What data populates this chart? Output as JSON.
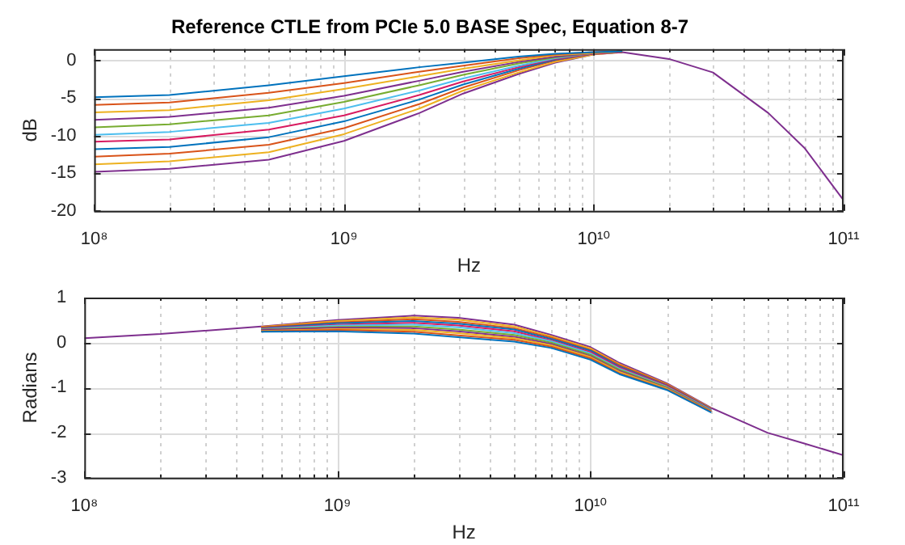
{
  "chart_data": [
    {
      "type": "line",
      "title": "Reference CTLE from PCIe 5.0 BASE Spec, Equation 8-7",
      "xlabel": "Hz",
      "ylabel": "dB",
      "log": "x",
      "grid": true,
      "marker": "none",
      "line_style": "solid",
      "x": [
        100000000.0,
        200000000.0,
        500000000.0,
        1000000000.0,
        2000000000.0,
        3000000000.0,
        5000000000.0,
        7000000000.0,
        10000000000.0,
        13000000000.0,
        20000000000.0,
        30000000000.0,
        50000000000.0,
        70000000000.0,
        100000000000.0
      ],
      "xlim": [
        100000000.0,
        100000000000.0
      ],
      "xticks": [
        {
          "value": 100000000.0,
          "label": "10⁸"
        },
        {
          "value": 200000000.0,
          "label": null
        },
        {
          "value": 300000000.0,
          "label": null
        },
        {
          "value": 400000000.0,
          "label": null
        },
        {
          "value": 500000000.0,
          "label": null
        },
        {
          "value": 600000000.0,
          "label": null
        },
        {
          "value": 700000000.0,
          "label": null
        },
        {
          "value": 800000000.0,
          "label": null
        },
        {
          "value": 900000000.0,
          "label": null
        },
        {
          "value": 1000000000.0,
          "label": "10⁹"
        },
        {
          "value": 2000000000.0,
          "label": null
        },
        {
          "value": 3000000000.0,
          "label": null
        },
        {
          "value": 4000000000.0,
          "label": null
        },
        {
          "value": 5000000000.0,
          "label": null
        },
        {
          "value": 6000000000.0,
          "label": null
        },
        {
          "value": 7000000000.0,
          "label": null
        },
        {
          "value": 8000000000.0,
          "label": null
        },
        {
          "value": 9000000000.0,
          "label": null
        },
        {
          "value": 10000000000.0,
          "label": "10¹⁰"
        },
        {
          "value": 20000000000.0,
          "label": null
        },
        {
          "value": 30000000000.0,
          "label": null
        },
        {
          "value": 40000000000.0,
          "label": null
        },
        {
          "value": 50000000000.0,
          "label": null
        },
        {
          "value": 60000000000.0,
          "label": null
        },
        {
          "value": 70000000000.0,
          "label": null
        },
        {
          "value": 80000000000.0,
          "label": null
        },
        {
          "value": 90000000000.0,
          "label": null
        },
        {
          "value": 100000000000.0,
          "label": "10¹¹"
        }
      ],
      "ylim": [
        -20,
        1.5
      ],
      "yticks": [
        -20,
        -15,
        -10,
        -5,
        0
      ],
      "series": [
        {
          "color": "#0072bd",
          "values": [
            -4.9,
            -4.6,
            -3.3,
            -2.1,
            -0.9,
            -0.3,
            0.5,
            0.9,
            1.1,
            1.2,
            null,
            null,
            null,
            null,
            null
          ]
        },
        {
          "color": "#d95319",
          "values": [
            -5.9,
            -5.6,
            -4.3,
            -3.0,
            -1.5,
            -0.7,
            0.3,
            0.8,
            1.1,
            1.2,
            null,
            null,
            null,
            null,
            null
          ]
        },
        {
          "color": "#edb120",
          "values": [
            -6.9,
            -6.6,
            -5.3,
            -3.8,
            -2.1,
            -1.1,
            0.0,
            0.7,
            1.0,
            1.2,
            null,
            null,
            null,
            null,
            null
          ]
        },
        {
          "color": "#7e2f8e",
          "values": [
            -7.9,
            -7.5,
            -6.3,
            -4.7,
            -2.7,
            -1.5,
            -0.2,
            0.5,
            1.0,
            1.2,
            null,
            null,
            null,
            null,
            null
          ]
        },
        {
          "color": "#77ac30",
          "values": [
            -8.9,
            -8.5,
            -7.3,
            -5.5,
            -3.3,
            -1.9,
            -0.4,
            0.4,
            1.0,
            1.2,
            null,
            null,
            null,
            null,
            null
          ]
        },
        {
          "color": "#4dbeee",
          "values": [
            -9.9,
            -9.5,
            -8.3,
            -6.4,
            -4.0,
            -2.4,
            -0.7,
            0.3,
            1.0,
            1.2,
            null,
            null,
            null,
            null,
            null
          ]
        },
        {
          "color": "#d81b60",
          "values": [
            -10.8,
            -10.5,
            -9.2,
            -7.3,
            -4.6,
            -2.8,
            -0.9,
            0.2,
            0.9,
            1.1,
            null,
            null,
            null,
            null,
            null
          ]
        },
        {
          "color": "#0072bd",
          "values": [
            -11.8,
            -11.5,
            -10.2,
            -8.1,
            -5.2,
            -3.2,
            -1.1,
            0.1,
            0.9,
            1.1,
            null,
            null,
            null,
            null,
            null
          ]
        },
        {
          "color": "#d95319",
          "values": [
            -12.8,
            -12.4,
            -11.2,
            -9.0,
            -5.8,
            -3.6,
            -1.3,
            0.0,
            0.9,
            1.1,
            null,
            null,
            null,
            null,
            null
          ]
        },
        {
          "color": "#edb120",
          "values": [
            -13.8,
            -13.4,
            -12.2,
            -9.8,
            -6.4,
            -4.0,
            -1.6,
            -0.2,
            0.8,
            1.1,
            null,
            null,
            null,
            null,
            null
          ]
        },
        {
          "color": "#7e2f8e",
          "values": [
            -14.8,
            -14.4,
            -13.2,
            -10.7,
            -7.0,
            -4.4,
            -1.8,
            -0.3,
            0.8,
            1.1,
            0.2,
            -1.6,
            -7.0,
            -11.7,
            -18.6
          ]
        }
      ]
    },
    {
      "type": "line",
      "xlabel": "Hz",
      "ylabel": "Radians",
      "log": "x",
      "grid": true,
      "marker": "none",
      "line_style": "solid",
      "x": [
        100000000.0,
        200000000.0,
        500000000.0,
        1000000000.0,
        2000000000.0,
        3000000000.0,
        5000000000.0,
        7000000000.0,
        10000000000.0,
        13000000000.0,
        20000000000.0,
        30000000000.0,
        50000000000.0,
        70000000000.0,
        100000000000.0
      ],
      "xlim": [
        100000000.0,
        100000000000.0
      ],
      "xticks": [
        {
          "value": 100000000.0,
          "label": "10⁸"
        },
        {
          "value": 200000000.0,
          "label": null
        },
        {
          "value": 300000000.0,
          "label": null
        },
        {
          "value": 400000000.0,
          "label": null
        },
        {
          "value": 500000000.0,
          "label": null
        },
        {
          "value": 600000000.0,
          "label": null
        },
        {
          "value": 700000000.0,
          "label": null
        },
        {
          "value": 800000000.0,
          "label": null
        },
        {
          "value": 900000000.0,
          "label": null
        },
        {
          "value": 1000000000.0,
          "label": "10⁹"
        },
        {
          "value": 2000000000.0,
          "label": null
        },
        {
          "value": 3000000000.0,
          "label": null
        },
        {
          "value": 4000000000.0,
          "label": null
        },
        {
          "value": 5000000000.0,
          "label": null
        },
        {
          "value": 6000000000.0,
          "label": null
        },
        {
          "value": 7000000000.0,
          "label": null
        },
        {
          "value": 8000000000.0,
          "label": null
        },
        {
          "value": 9000000000.0,
          "label": null
        },
        {
          "value": 10000000000.0,
          "label": "10¹⁰"
        },
        {
          "value": 20000000000.0,
          "label": null
        },
        {
          "value": 30000000000.0,
          "label": null
        },
        {
          "value": 40000000000.0,
          "label": null
        },
        {
          "value": 50000000000.0,
          "label": null
        },
        {
          "value": 60000000000.0,
          "label": null
        },
        {
          "value": 70000000000.0,
          "label": null
        },
        {
          "value": 80000000000.0,
          "label": null
        },
        {
          "value": 90000000000.0,
          "label": null
        },
        {
          "value": 100000000000.0,
          "label": "10¹¹"
        }
      ],
      "ylim": [
        -3,
        1
      ],
      "yticks": [
        -3,
        -2,
        -1,
        0,
        1
      ],
      "series": [
        {
          "color": "#0072bd",
          "values": [
            null,
            null,
            0.24,
            0.25,
            0.2,
            0.12,
            0.02,
            -0.12,
            -0.38,
            -0.7,
            -1.05,
            -1.55,
            null,
            null,
            null
          ]
        },
        {
          "color": "#d95319",
          "values": [
            null,
            null,
            0.25,
            0.28,
            0.24,
            0.16,
            0.06,
            -0.09,
            -0.35,
            -0.68,
            -1.04,
            -1.54,
            null,
            null,
            null
          ]
        },
        {
          "color": "#edb120",
          "values": [
            null,
            null,
            0.26,
            0.3,
            0.28,
            0.21,
            0.1,
            -0.06,
            -0.32,
            -0.65,
            -1.02,
            -1.53,
            null,
            null,
            null
          ]
        },
        {
          "color": "#7e2f8e",
          "values": [
            null,
            null,
            0.28,
            0.33,
            0.32,
            0.25,
            0.13,
            -0.03,
            -0.3,
            -0.63,
            -1.01,
            -1.52,
            null,
            null,
            null
          ]
        },
        {
          "color": "#77ac30",
          "values": [
            null,
            null,
            0.29,
            0.35,
            0.36,
            0.29,
            0.17,
            0.0,
            -0.27,
            -0.6,
            -0.99,
            -1.51,
            null,
            null,
            null
          ]
        },
        {
          "color": "#4dbeee",
          "values": [
            null,
            null,
            0.3,
            0.38,
            0.4,
            0.34,
            0.21,
            0.03,
            -0.24,
            -0.58,
            -0.98,
            -1.5,
            null,
            null,
            null
          ]
        },
        {
          "color": "#d81b60",
          "values": [
            null,
            null,
            0.31,
            0.4,
            0.44,
            0.38,
            0.25,
            0.05,
            -0.21,
            -0.55,
            -0.96,
            -1.49,
            null,
            null,
            null
          ]
        },
        {
          "color": "#0072bd",
          "values": [
            null,
            null,
            0.32,
            0.43,
            0.48,
            0.42,
            0.29,
            0.08,
            -0.18,
            -0.53,
            -0.95,
            -1.48,
            null,
            null,
            null
          ]
        },
        {
          "color": "#d95319",
          "values": [
            null,
            null,
            0.34,
            0.45,
            0.52,
            0.46,
            0.32,
            0.11,
            -0.16,
            -0.5,
            -0.93,
            -1.47,
            null,
            null,
            null
          ]
        },
        {
          "color": "#edb120",
          "values": [
            null,
            null,
            0.35,
            0.48,
            0.56,
            0.51,
            0.36,
            0.14,
            -0.13,
            -0.48,
            -0.92,
            -1.46,
            null,
            null,
            null
          ]
        },
        {
          "color": "#7e2f8e",
          "values": [
            0.1,
            0.19,
            0.36,
            0.5,
            0.6,
            0.55,
            0.4,
            0.17,
            -0.1,
            -0.45,
            -0.9,
            -1.45,
            -2.0,
            -2.24,
            -2.5
          ]
        }
      ]
    }
  ]
}
